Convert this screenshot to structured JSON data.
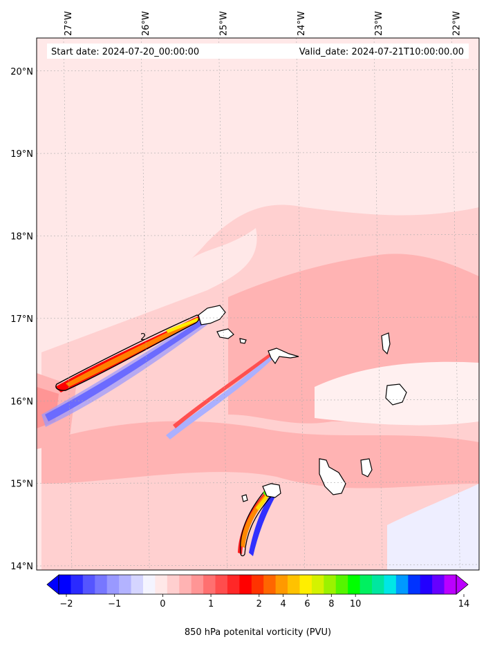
{
  "chart_data": {
    "type": "heatmap",
    "header": {
      "start_date": "Start date: 2024-07-20_00:00:00",
      "valid_date": "Valid_date: 2024-07-21T10:00:00.00"
    },
    "longitude_ticks": [
      "27°W",
      "26°W",
      "25°W",
      "24°W",
      "23°W",
      "22°W"
    ],
    "longitude_values": [
      -27,
      -26,
      -25,
      -24,
      -23,
      -22
    ],
    "latitude_ticks": [
      "14°N",
      "15°N",
      "16°N",
      "17°N",
      "18°N",
      "19°N",
      "20°N"
    ],
    "latitude_values": [
      14,
      15,
      16,
      17,
      18,
      19,
      20
    ],
    "lon_range": [
      -27.4,
      -21.7
    ],
    "lat_range": [
      13.95,
      20.4
    ],
    "grid": true,
    "contour_label": "2",
    "colorbar": {
      "label": "850 hPa potenital vorticity (PVU)",
      "tick_labels": [
        "−2",
        "−1",
        "0",
        "1",
        "2",
        "4",
        "6",
        "8",
        "10",
        "14"
      ],
      "extend": "both",
      "colors": [
        "#0000ff",
        "#2a2aff",
        "#5555ff",
        "#7777ff",
        "#9999ff",
        "#b3b3ff",
        "#d5d5ff",
        "#f4f4ff",
        "#ffe8e8",
        "#ffcfcf",
        "#ffb3b3",
        "#ff9595",
        "#ff7070",
        "#ff4d4d",
        "#ff2727",
        "#ff0000",
        "#ff3300",
        "#ff6600",
        "#ff9900",
        "#ffc200",
        "#ffee00",
        "#d4f200",
        "#9bf200",
        "#55f500",
        "#00ff00",
        "#00f060",
        "#00e6a0",
        "#00e6e6",
        "#0099ff",
        "#0033ff",
        "#2200ff",
        "#6600ff",
        "#bb00ff"
      ]
    }
  }
}
